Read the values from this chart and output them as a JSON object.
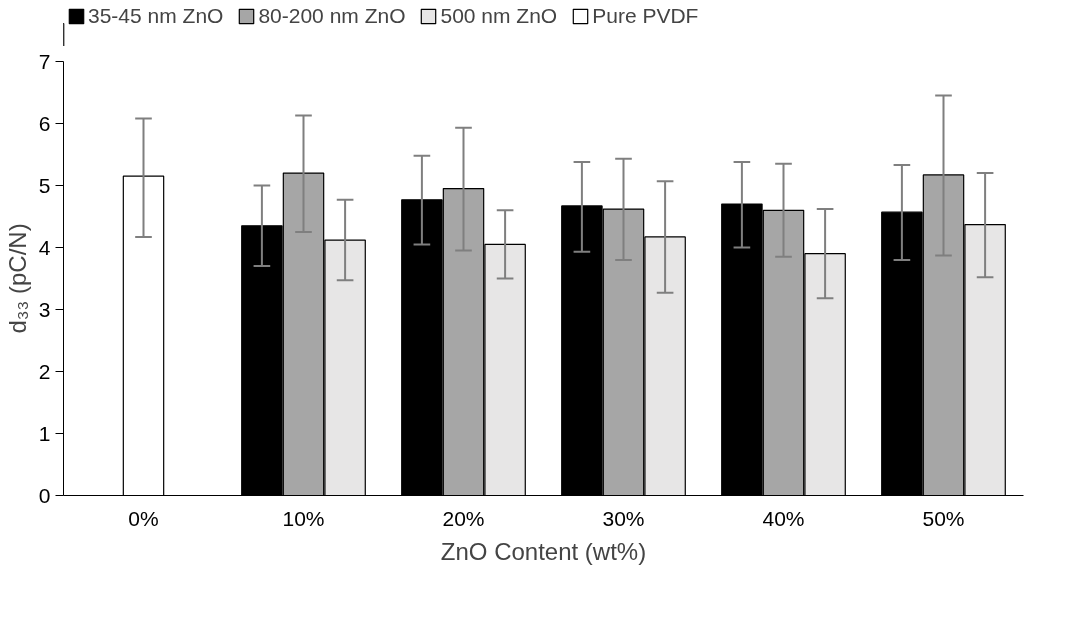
{
  "chart_data": {
    "type": "bar",
    "xlabel": "ZnO Content (wt%)",
    "ylabel": "d₃₃ (pC/N)",
    "categories": [
      "0%",
      "10%",
      "20%",
      "30%",
      "40%",
      "50%"
    ],
    "ylim": [
      0,
      7
    ],
    "yticks": [
      0,
      1,
      2,
      3,
      4,
      5,
      6,
      7
    ],
    "grid": false,
    "legend": "top",
    "series": [
      {
        "name": "35-45 nm ZnO",
        "color": "#000000",
        "values": [
          null,
          4.35,
          4.77,
          4.67,
          4.7,
          4.57
        ],
        "errors": [
          null,
          [
            3.7,
            5.0
          ],
          [
            4.05,
            5.48
          ],
          [
            3.93,
            5.38
          ],
          [
            4.0,
            5.38
          ],
          [
            3.8,
            5.33
          ]
        ]
      },
      {
        "name": "80-200 nm ZnO",
        "color": "#a6a6a6",
        "values": [
          null,
          5.2,
          4.95,
          4.62,
          4.6,
          5.17
        ],
        "errors": [
          null,
          [
            4.25,
            6.13
          ],
          [
            3.95,
            5.93
          ],
          [
            3.8,
            5.43
          ],
          [
            3.85,
            5.35
          ],
          [
            3.87,
            6.45
          ]
        ]
      },
      {
        "name": "500 nm ZnO",
        "color": "#e7e6e6",
        "values": [
          null,
          4.12,
          4.05,
          4.17,
          3.9,
          4.37
        ],
        "errors": [
          null,
          [
            3.47,
            4.77
          ],
          [
            3.5,
            4.6
          ],
          [
            3.27,
            5.07
          ],
          [
            3.18,
            4.62
          ],
          [
            3.52,
            5.2
          ]
        ]
      },
      {
        "name": "Pure PVDF",
        "color": "#ffffff",
        "values": [
          5.15,
          null,
          null,
          null,
          null,
          null
        ],
        "errors": [
          [
            4.17,
            6.08
          ],
          null,
          null,
          null,
          null,
          null
        ]
      }
    ]
  }
}
